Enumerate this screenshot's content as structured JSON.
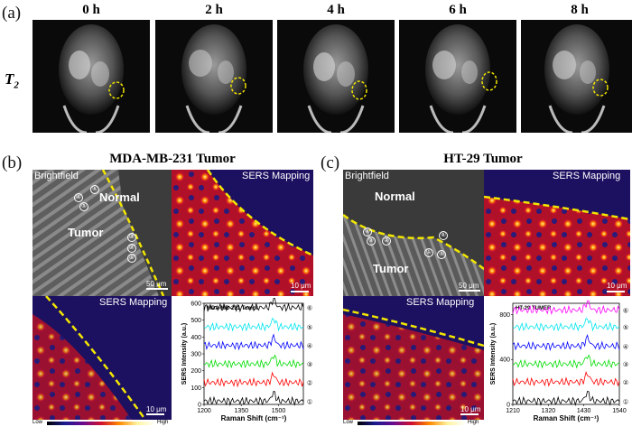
{
  "panel_a": {
    "letter": "(a)",
    "row_label_main": "T",
    "row_label_sub": "2",
    "time_points": [
      "0 h",
      "2 h",
      "4 h",
      "6 h",
      "8 h"
    ]
  },
  "panel_b": {
    "letter": "(b)",
    "title": "MDA-MB-231 Tumor",
    "brightfield_label": "Brightfield",
    "sers_label": "SERS Mapping",
    "sers_label_2": "SERS Mapping",
    "normal_label": "Normal",
    "tumor_label": "Tumor",
    "scale_bf": "50 μm",
    "scale_sers": "10 μm",
    "scale_sers_2": "10 μm",
    "colorbar_low": "Low",
    "colorbar_high": "High",
    "spots": [
      "④",
      "⑥",
      "⑤",
      "③",
      "②",
      "①"
    ]
  },
  "panel_c": {
    "letter": "(c)",
    "title": "HT-29 Tumor",
    "brightfield_label": "Brightfield",
    "sers_label": "SERS Mapping",
    "sers_label_2": "SERS Mapping",
    "normal_label": "Normal",
    "tumor_label": "Tumor",
    "scale_bf": "50 μm",
    "scale_sers": "10 μm",
    "scale_sers_2": "10 μm",
    "colorbar_low": "Low",
    "colorbar_high": "High",
    "spots": [
      "⑥",
      "④",
      "③",
      "②",
      "①",
      "⑤"
    ]
  },
  "chart_data": [
    {
      "type": "line",
      "title": "MDA-MB-231 Tumor",
      "xlabel": "Raman Shift (cm⁻¹)",
      "ylabel": "SERS Intensity (a.u.)",
      "xlim": [
        1200,
        1600
      ],
      "ylim": [
        0,
        600
      ],
      "xticks": [
        1200,
        1350,
        1500
      ],
      "yticks": [
        0,
        100,
        200,
        300,
        400,
        500,
        600
      ],
      "series": [
        {
          "name": "①",
          "color": "#000000",
          "offset": 20
        },
        {
          "name": "②",
          "color": "#ff0000",
          "offset": 130
        },
        {
          "name": "③",
          "color": "#00dd00",
          "offset": 240
        },
        {
          "name": "④",
          "color": "#0000ff",
          "offset": 350
        },
        {
          "name": "⑤",
          "color": "#00e5ee",
          "offset": 460
        },
        {
          "name": "⑥",
          "color": "#000000",
          "offset": 575
        }
      ]
    },
    {
      "type": "line",
      "title": "HT-29 TUMER",
      "xlabel": "Raman Shift (cm⁻¹)",
      "ylabel": "SERS Intensity (a.u.)",
      "xlim": [
        1210,
        1540
      ],
      "ylim": [
        0,
        900
      ],
      "xticks": [
        1210,
        1320,
        1430,
        1540
      ],
      "yticks": [
        0,
        400,
        800
      ],
      "series": [
        {
          "name": "①",
          "color": "#000000",
          "offset": 30
        },
        {
          "name": "②",
          "color": "#ff0000",
          "offset": 200
        },
        {
          "name": "③",
          "color": "#00dd00",
          "offset": 360
        },
        {
          "name": "④",
          "color": "#0000ff",
          "offset": 520
        },
        {
          "name": "⑤",
          "color": "#00e5ee",
          "offset": 690
        },
        {
          "name": "⑥",
          "color": "#ff00ff",
          "offset": 840
        }
      ]
    }
  ]
}
